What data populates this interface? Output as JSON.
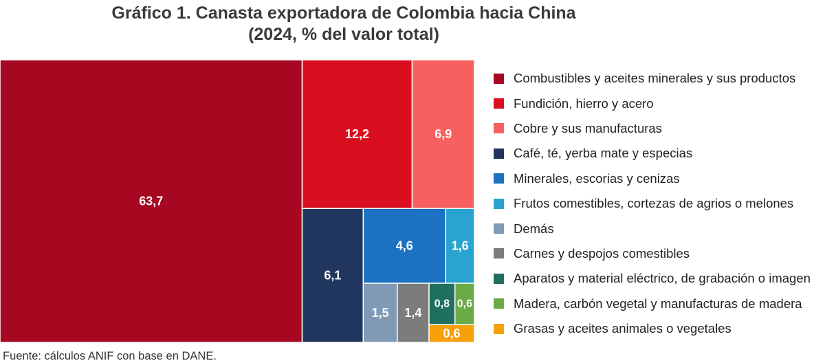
{
  "title_line1": "Gráfico 1. Canasta exportadora de Colombia hacia China",
  "title_line2": "(2024, % del valor total)",
  "source": "Fuente: cálculos ANIF con base en DANE.",
  "chart_data": {
    "type": "treemap",
    "title": "Gráfico 1. Canasta exportadora de Colombia hacia China (2024, % del valor total)",
    "legend_position": "right",
    "items": [
      {
        "label": "Combustibles y aceites minerales y sus productos",
        "value": 63.7,
        "value_label": "63,7",
        "color": "#a50820",
        "text_color": "#ffffff"
      },
      {
        "label": "Fundición, hierro y acero",
        "value": 12.2,
        "value_label": "12,2",
        "color": "#d90f20",
        "text_color": "#ffffff"
      },
      {
        "label": "Cobre y sus manufacturas",
        "value": 6.9,
        "value_label": "6,9",
        "color": "#f7605f",
        "text_color": "#ffffff"
      },
      {
        "label": "Café, té, yerba mate y especias",
        "value": 6.1,
        "value_label": "6,1",
        "color": "#20365e",
        "text_color": "#ffffff"
      },
      {
        "label": "Minerales, escorias y cenizas",
        "value": 4.6,
        "value_label": "4,6",
        "color": "#1b72c2",
        "text_color": "#ffffff"
      },
      {
        "label": "Frutos comestibles, cortezas de agrios o melones",
        "value": 1.6,
        "value_label": "1,6",
        "color": "#29a3d0",
        "text_color": "#ffffff"
      },
      {
        "label": "Demás",
        "value": 1.5,
        "value_label": "1,5",
        "color": "#8099b4",
        "text_color": "#ffffff"
      },
      {
        "label": "Carnes y despojos comestibles",
        "value": 1.4,
        "value_label": "1,4",
        "color": "#7c7c7c",
        "text_color": "#ffffff"
      },
      {
        "label": "Aparatos y material eléctrico, de grabación o imagen",
        "value": 0.8,
        "value_label": "0,8",
        "color": "#20705f",
        "text_color": "#ffffff"
      },
      {
        "label": "Madera, carbón vegetal y manufacturas de madera",
        "value": 0.6,
        "value_label": "0,6",
        "color": "#6aab45",
        "text_color": "#ffffff"
      },
      {
        "label": "Grasas y aceites animales o vegetales",
        "value": 0.6,
        "value_label": "0,6",
        "color": "#f7a00a",
        "text_color": "#ffffff"
      }
    ]
  }
}
